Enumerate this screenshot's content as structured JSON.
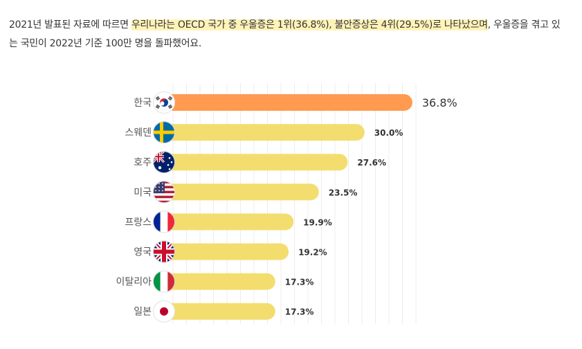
{
  "article": {
    "part1": "2021년 발표된 자료에 따르면 ",
    "highlight": "우리나라는 OECD 국가 중 우울증은 1위(36.8%), 불안증상은 4위(29.5%)로 나타났으며",
    "part2": ", 우울증을 겪고 있는 국민이 2022년 기준 100만 명을 돌파했어요."
  },
  "colors": {
    "top_bar": "#ff9a50",
    "bar": "#f3dd6e",
    "grid": "#ececec"
  },
  "chart_data": {
    "type": "bar",
    "orientation": "horizontal",
    "title": "",
    "xlabel": "",
    "ylabel": "",
    "xlim": [
      0,
      40
    ],
    "grid": true,
    "categories": [
      "한국",
      "스웨덴",
      "호주",
      "미국",
      "프랑스",
      "영국",
      "이탈리아",
      "일본"
    ],
    "values": [
      36.8,
      30.0,
      27.6,
      23.5,
      19.9,
      19.2,
      17.3,
      17.3
    ],
    "value_labels": [
      "36.8%",
      "30.0%",
      "27.6%",
      "23.5%",
      "19.9%",
      "19.2%",
      "17.3%",
      "17.3%"
    ],
    "flag_icons": [
      "korea-flag-icon",
      "sweden-flag-icon",
      "australia-flag-icon",
      "usa-flag-icon",
      "france-flag-icon",
      "uk-flag-icon",
      "italy-flag-icon",
      "japan-flag-icon"
    ],
    "highlight_index": 0
  }
}
